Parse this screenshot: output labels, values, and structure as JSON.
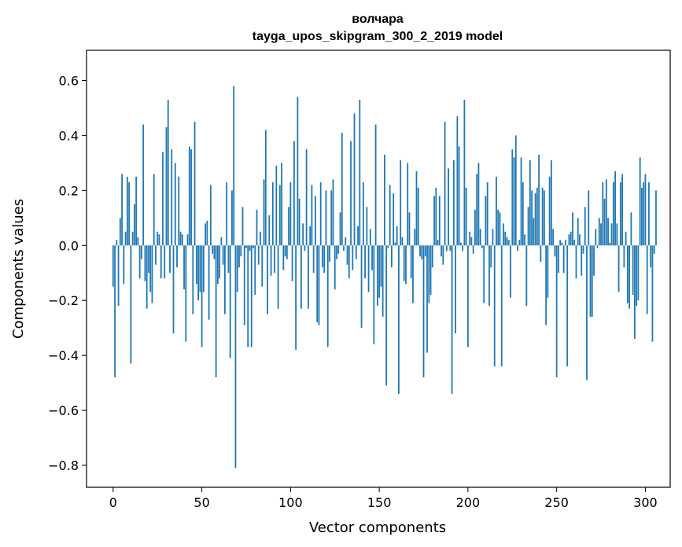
{
  "chart_data": {
    "type": "bar",
    "title": "волчара",
    "subtitle": "tayga_upos_skipgram_300_2_2019 model",
    "xlabel": "Vector components",
    "ylabel": "Components values",
    "xlim": [
      -15,
      314
    ],
    "ylim": [
      -0.88,
      0.71
    ],
    "xticks": [
      0,
      50,
      100,
      150,
      200,
      250,
      300
    ],
    "xtick_labels": [
      "0",
      "50",
      "100",
      "150",
      "200",
      "250",
      "300"
    ],
    "yticks": [
      -0.8,
      -0.6,
      -0.4,
      -0.2,
      0.0,
      0.2,
      0.4,
      0.6
    ],
    "ytick_labels": [
      "−0.8",
      "−0.6",
      "−0.4",
      "−0.2",
      "0.0",
      "0.2",
      "0.4",
      "0.6"
    ],
    "bar_color": "#1f77b4",
    "grid": false,
    "values": [
      -0.15,
      -0.48,
      0.02,
      -0.22,
      0.1,
      0.26,
      -0.14,
      0.05,
      0.25,
      0.23,
      -0.43,
      0.05,
      0.15,
      0.25,
      0.03,
      -0.12,
      -0.05,
      0.44,
      -0.13,
      -0.23,
      -0.1,
      -0.17,
      -0.21,
      0.26,
      -0.07,
      0.05,
      0.04,
      -0.12,
      0.34,
      -0.12,
      0.43,
      0.53,
      -0.1,
      0.35,
      -0.32,
      0.3,
      -0.08,
      0.25,
      0.05,
      0.04,
      -0.16,
      -0.35,
      0.04,
      0.36,
      0.35,
      -0.25,
      0.45,
      -0.14,
      -0.2,
      -0.17,
      -0.37,
      -0.17,
      0.08,
      0.09,
      -0.27,
      0.22,
      -0.03,
      -0.05,
      -0.48,
      -0.14,
      -0.12,
      0.03,
      -0.07,
      -0.25,
      0.23,
      -0.1,
      -0.41,
      0.2,
      0.58,
      -0.81,
      -0.17,
      -0.08,
      -0.04,
      0.14,
      -0.29,
      -0.01,
      -0.37,
      -0.02,
      -0.37,
      -0.01,
      -0.18,
      0.13,
      -0.07,
      0.05,
      -0.15,
      0.24,
      0.42,
      -0.25,
      0.11,
      -0.11,
      0.23,
      -0.1,
      0.29,
      -0.23,
      0.22,
      0.3,
      -0.09,
      -0.04,
      -0.05,
      0.14,
      0.23,
      -0.13,
      0.38,
      -0.38,
      0.54,
      0.17,
      -0.23,
      0.08,
      -0.02,
      0.35,
      -0.23,
      0.07,
      0.22,
      -0.1,
      0.18,
      -0.28,
      -0.29,
      0.23,
      -0.08,
      -0.1,
      0.2,
      -0.37,
      -0.06,
      0.2,
      0.24,
      -0.16,
      -0.05,
      -0.03,
      0.12,
      0.41,
      -0.02,
      0.03,
      -0.07,
      -0.12,
      0.38,
      -0.09,
      0.48,
      -0.05,
      0.07,
      0.53,
      -0.3,
      0.23,
      -0.12,
      0.14,
      -0.17,
      0.06,
      -0.09,
      -0.36,
      0.44,
      -0.22,
      -0.19,
      -0.15,
      -0.26,
      0.33,
      -0.51,
      -0.01,
      0.22,
      -0.08,
      0.19,
      0.01,
      0.07,
      -0.54,
      0.31,
      0.03,
      -0.13,
      -0.14,
      0.3,
      0.12,
      -0.12,
      -0.21,
      0.06,
      0.27,
      0.21,
      -0.04,
      -0.05,
      -0.48,
      -0.04,
      -0.39,
      -0.21,
      -0.18,
      -0.08,
      0.18,
      0.21,
      0.02,
      0.18,
      -0.04,
      -0.07,
      0.45,
      -0.02,
      0.28,
      -0.02,
      -0.54,
      0.31,
      -0.32,
      0.47,
      0.36,
      0.01,
      -0.02,
      0.53,
      0.21,
      -0.37,
      0.05,
      0.03,
      -0.03,
      0.13,
      0.26,
      0.3,
      0.06,
      -0.01,
      -0.21,
      0.18,
      0.23,
      -0.22,
      -0.08,
      0.06,
      -0.44,
      0.25,
      0.13,
      0.12,
      -0.44,
      0.08,
      0.05,
      0.03,
      0.02,
      -0.19,
      0.35,
      0.32,
      0.4,
      -0.02,
      0.02,
      0.32,
      0.23,
      0.04,
      -0.22,
      0.14,
      0.31,
      0.2,
      0.1,
      0.19,
      0.21,
      0.33,
      -0.06,
      0.21,
      0.2,
      -0.29,
      -0.19,
      0.25,
      0.31,
      0.06,
      -0.04,
      -0.48,
      -0.1,
      0.02,
      0.01,
      -0.1,
      0.02,
      -0.44,
      0.04,
      0.05,
      0.12,
      0.02,
      -0.12,
      0.1,
      0.04,
      -0.11,
      -0.03,
      0.14,
      -0.49,
      0.2,
      -0.26,
      -0.26,
      -0.11,
      0.06,
      -0.01,
      0.1,
      0.08,
      0.23,
      0.17,
      0.24,
      0.1,
      0.01,
      0.08,
      0.23,
      0.27,
      0.08,
      -0.17,
      0.23,
      0.26,
      -0.08,
      0.05,
      -0.21,
      -0.23,
      0.12,
      -0.18,
      -0.34,
      -0.22,
      -0.2,
      0.32,
      0.21,
      0.23,
      0.26,
      -0.25,
      0.23,
      -0.08,
      -0.35,
      -0.03,
      0.2
    ]
  }
}
